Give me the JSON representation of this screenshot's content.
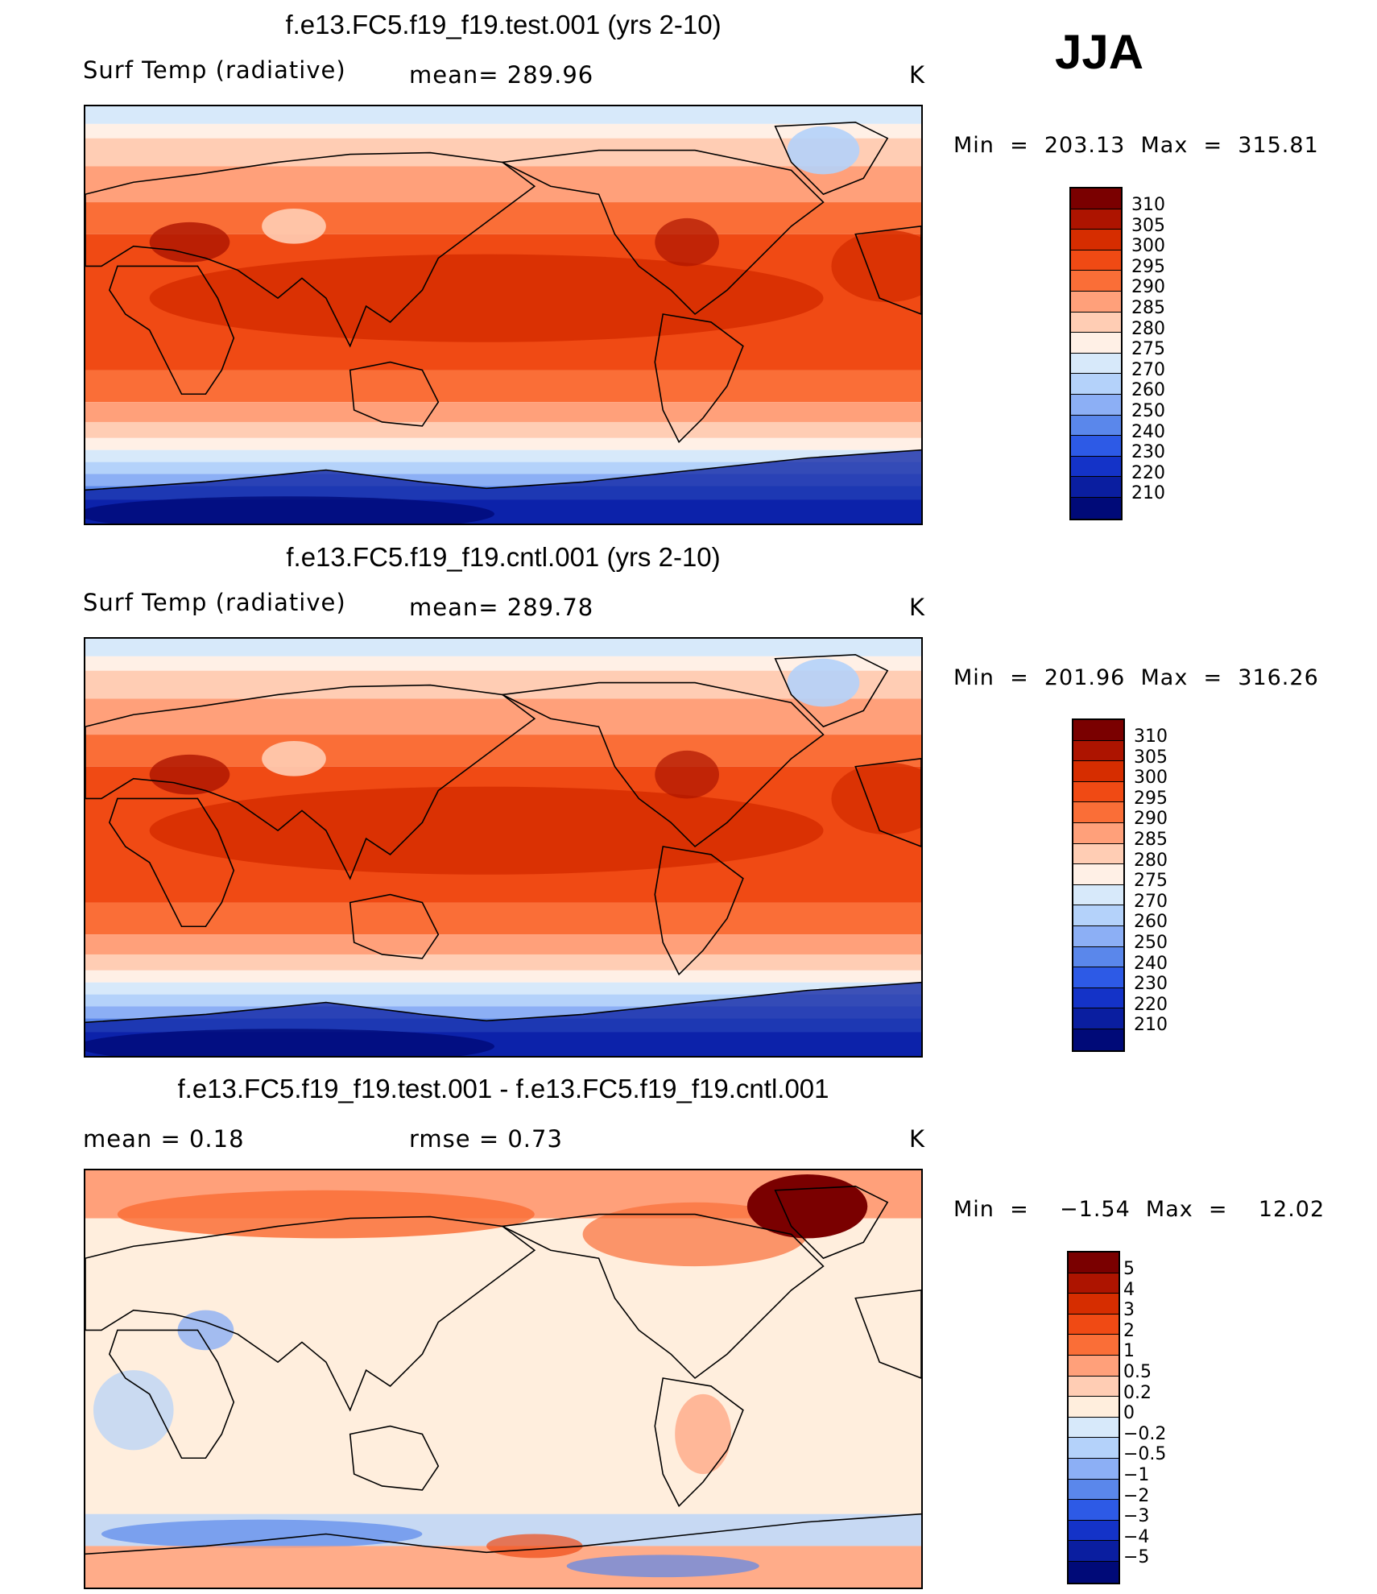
{
  "season": "JJA",
  "panels": [
    {
      "title": "f.e13.FC5.f19_f19.test.001 (yrs 2-10)",
      "left_label": "Surf Temp (radiative)",
      "center_label": "mean= 289.96",
      "units": "K",
      "min_max": "Min  =  203.13  Max  =  315.81",
      "colorbar_labels": [
        "310",
        "305",
        "300",
        "295",
        "290",
        "285",
        "280",
        "275",
        "270",
        "260",
        "250",
        "240",
        "230",
        "220",
        "210"
      ],
      "map_type": "absolute"
    },
    {
      "title": "f.e13.FC5.f19_f19.cntl.001 (yrs 2-10)",
      "left_label": "Surf Temp (radiative)",
      "center_label": "mean= 289.78",
      "units": "K",
      "min_max": "Min  =  201.96  Max  =  316.26",
      "colorbar_labels": [
        "310",
        "305",
        "300",
        "295",
        "290",
        "285",
        "280",
        "275",
        "270",
        "260",
        "250",
        "240",
        "230",
        "220",
        "210"
      ],
      "map_type": "absolute"
    },
    {
      "title": "f.e13.FC5.f19_f19.test.001 - f.e13.FC5.f19_f19.cntl.001",
      "left_label": "mean =     0.18",
      "center_label": "rmse =     0.73",
      "units": "K",
      "min_max": "Min  =    −1.54  Max  =    12.02",
      "colorbar_labels": [
        "5",
        "4",
        "3",
        "2",
        "1",
        "0.5",
        "0.2",
        "0",
        "−0.2",
        "−0.5",
        "−1",
        "−2",
        "−3",
        "−4",
        "−5"
      ],
      "map_type": "difference"
    }
  ],
  "colors": {
    "abs_scale": [
      "#7a0000",
      "#ad1400",
      "#d62d00",
      "#f04a14",
      "#fa6e37",
      "#ffa07a",
      "#ffcdb4",
      "#fff0e6",
      "#d7e9fa",
      "#b4d2fa",
      "#8caff5",
      "#5a87eb",
      "#2d5ae6",
      "#1433c8",
      "#0a1ea0",
      "#000a78"
    ],
    "diff_scale": [
      "#7a0000",
      "#ad1400",
      "#d62d00",
      "#f04a14",
      "#fa6e37",
      "#ffa07a",
      "#ffcdb4",
      "#ffeedd",
      "#d7e9fa",
      "#b4d2fa",
      "#8caff5",
      "#5a87eb",
      "#2d5ae6",
      "#1433c8",
      "#0a1ea0",
      "#000a78"
    ]
  }
}
